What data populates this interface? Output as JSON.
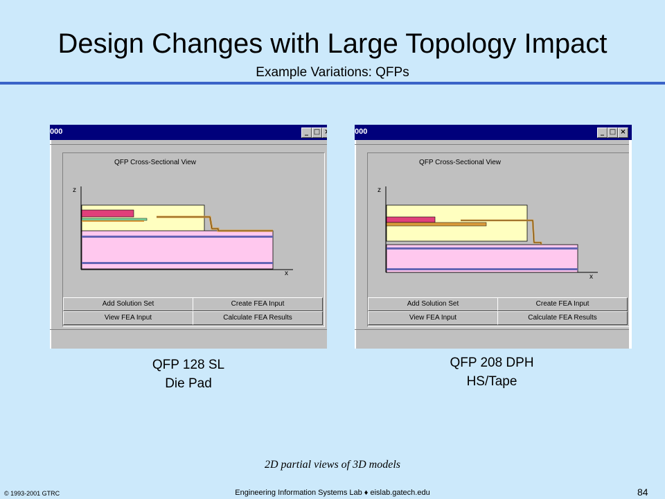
{
  "slide": {
    "title": "Design Changes with Large Topology Impact",
    "subtitle": "Example Variations: QFPs",
    "note": "2D partial views of 3D models",
    "footer_left": "© 1993-2001  GTRC",
    "footer_center": "Engineering Information Systems Lab ♦ eislab.gatech.edu",
    "page_number": "84"
  },
  "windows": [
    {
      "title_fragment": "000",
      "plot_title": "QFP Cross-Sectional View",
      "z_label": "z",
      "x_label": "x",
      "buttons": [
        "Add Solution Set",
        "Create FEA Input",
        "View FEA Input",
        "Calculate FEA Results"
      ],
      "caption_line1": "QFP 128 SL",
      "caption_line2": "Die Pad"
    },
    {
      "title_fragment": "000",
      "plot_title": "QFP Cross-Sectional View",
      "z_label": "z",
      "x_label": "x",
      "buttons": [
        "Add Solution Set",
        "Create FEA Input",
        "View FEA Input",
        "Calculate FEA Results"
      ],
      "caption_line1": "QFP 208 DPH",
      "caption_line2": "HS/Tape"
    }
  ],
  "window_controls": {
    "minimize": "_",
    "maximize": "□",
    "close": "×"
  },
  "colors": {
    "background": "#cce9fb",
    "rule": "#3a64c8",
    "titlebar": "#00007b",
    "mold": "#ffffc0",
    "board": "#ffc8ee",
    "die": "#e0407a",
    "leadframe": "#d89a3a",
    "attach": "#80e0a0"
  }
}
